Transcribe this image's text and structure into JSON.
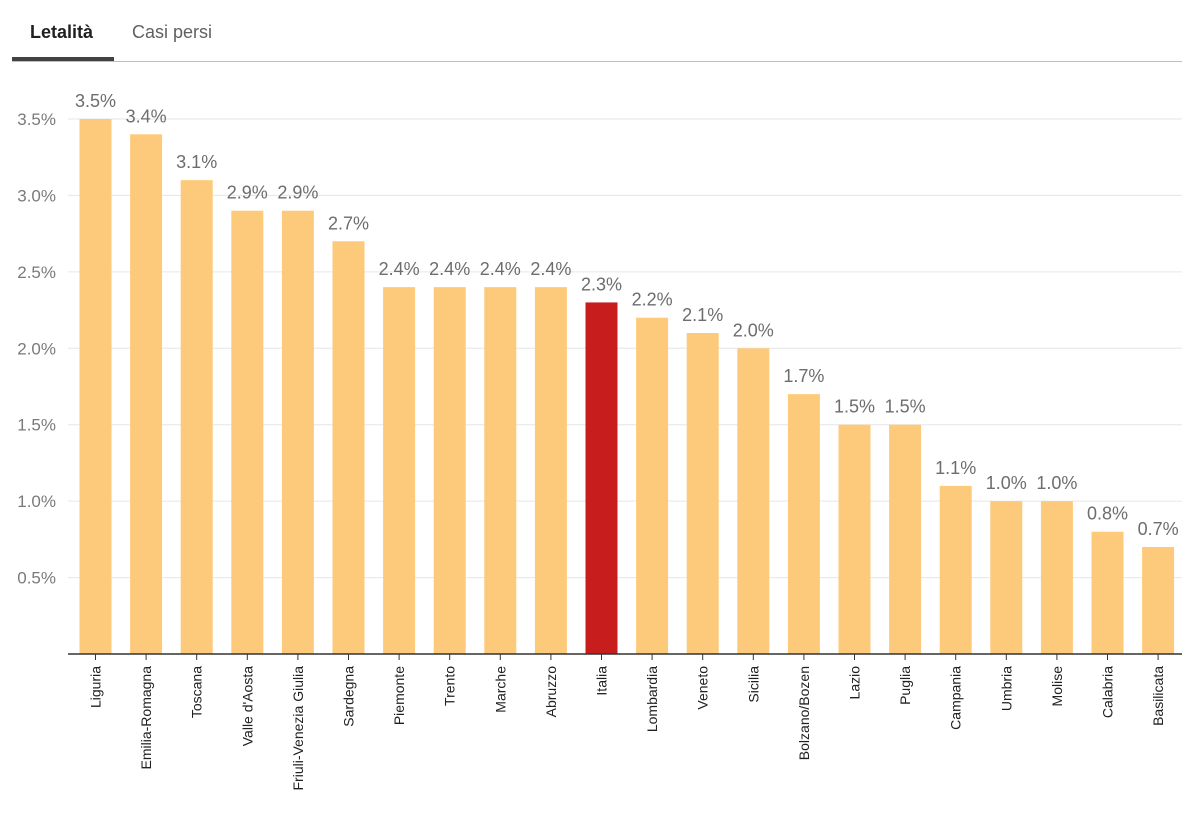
{
  "tabs": [
    {
      "label": "Letalità",
      "active": true
    },
    {
      "label": "Casi persi",
      "active": false
    }
  ],
  "chart_data": {
    "type": "bar",
    "categories": [
      "Liguria",
      "Emilia-Romagna",
      "Toscana",
      "Valle d'Aosta",
      "Friuli-Venezia Giulia",
      "Sardegna",
      "Piemonte",
      "Trento",
      "Marche",
      "Abruzzo",
      "Italia",
      "Lombardia",
      "Veneto",
      "Sicilia",
      "Bolzano/Bozen",
      "Lazio",
      "Puglia",
      "Campania",
      "Umbria",
      "Molise",
      "Calabria",
      "Basilicata"
    ],
    "values": [
      3.5,
      3.4,
      3.1,
      2.9,
      2.9,
      2.7,
      2.4,
      2.4,
      2.4,
      2.4,
      2.3,
      2.2,
      2.1,
      2.0,
      1.7,
      1.5,
      1.5,
      1.1,
      1.0,
      1.0,
      0.8,
      0.7
    ],
    "data_labels": [
      "3.5%",
      "3.4%",
      "3.1%",
      "2.9%",
      "2.9%",
      "2.7%",
      "2.4%",
      "2.4%",
      "2.4%",
      "2.4%",
      "2.3%",
      "2.2%",
      "2.1%",
      "2.0%",
      "1.7%",
      "1.5%",
      "1.5%",
      "1.1%",
      "1.0%",
      "1.0%",
      "0.8%",
      "0.7%"
    ],
    "yticks": [
      0.5,
      1.0,
      1.5,
      2.0,
      2.5,
      3.0,
      3.5
    ],
    "ytick_labels": [
      "0.5%",
      "1.0%",
      "1.5%",
      "2.0%",
      "2.5%",
      "3.0%",
      "3.5%"
    ],
    "ylim": [
      0,
      3.5
    ],
    "highlight_category": "Italia",
    "colors": {
      "bar": "#fdca7b",
      "highlight": "#c71d1d",
      "grid": "#e6e6e6",
      "axis": "#333333"
    },
    "title": "",
    "xlabel": "",
    "ylabel": ""
  }
}
